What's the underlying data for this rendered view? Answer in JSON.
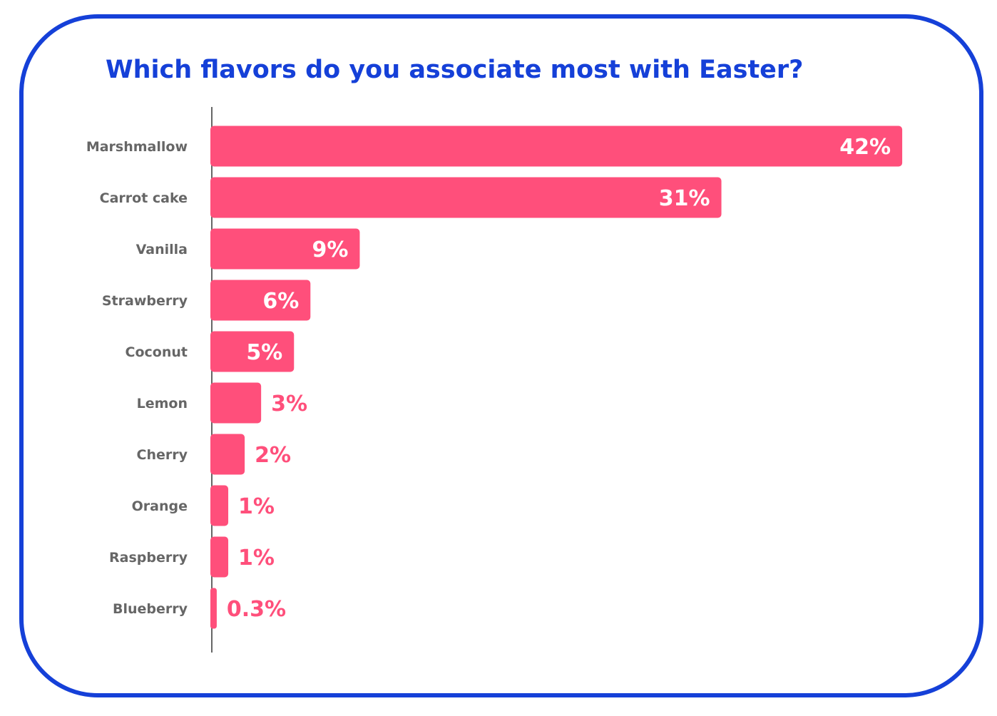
{
  "chart_data": {
    "type": "bar",
    "orientation": "horizontal",
    "title": "Which flavors do you associate most with Easter?",
    "categories": [
      "Marshmallow",
      "Carrot cake",
      "Vanilla",
      "Strawberry",
      "Coconut",
      "Lemon",
      "Cherry",
      "Orange",
      "Raspberry",
      "Blueberry"
    ],
    "values": [
      42,
      31,
      9,
      6,
      5,
      3,
      2,
      1,
      1,
      0.3
    ],
    "value_labels": [
      "42%",
      "31%",
      "9%",
      "6%",
      "5%",
      "3%",
      "2%",
      "1%",
      "1%",
      "0.3%"
    ],
    "unit": "%",
    "grid": false,
    "legend": "none"
  },
  "colors": {
    "bar": "#ff4f7b",
    "title": "#1540d8",
    "border": "#1540d8",
    "category_text": "#666666",
    "label_inside": "#ffffff",
    "label_outside": "#ff4f7b",
    "axis": "#666666"
  }
}
